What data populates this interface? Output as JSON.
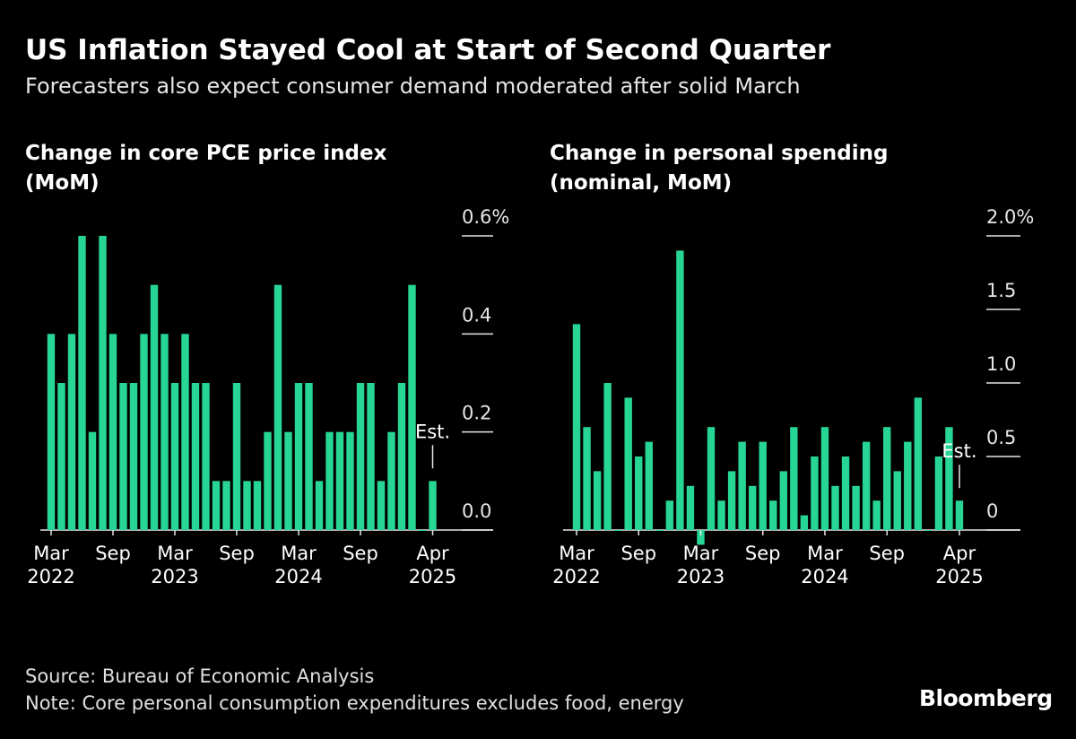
{
  "title": "US Inflation Stayed Cool at Start of Second Quarter",
  "subtitle": "Forecasters also expect consumer demand moderated after solid March",
  "source": "Source: Bureau of Economic Analysis",
  "note": "Note: Core personal consumption expenditures excludes food, energy",
  "brand": "Bloomberg",
  "chart_data": [
    {
      "type": "bar",
      "title": "Change in core PCE price index\n(MoM)",
      "color": "#27d694",
      "annotation": "Est.",
      "categories": [
        "Mar\n2022",
        null,
        null,
        null,
        null,
        null,
        "Sep",
        null,
        null,
        null,
        null,
        null,
        "Mar\n2023",
        null,
        null,
        null,
        null,
        null,
        "Sep",
        null,
        null,
        null,
        null,
        null,
        "Mar\n2024",
        null,
        null,
        null,
        null,
        null,
        "Sep",
        null,
        null,
        null,
        null,
        null,
        null,
        "Apr\n2025"
      ],
      "values": [
        0.4,
        0.3,
        0.4,
        0.6,
        0.2,
        0.6,
        0.4,
        0.3,
        0.3,
        0.4,
        0.5,
        0.4,
        0.3,
        0.4,
        0.3,
        0.3,
        0.1,
        0.1,
        0.3,
        0.1,
        0.1,
        0.2,
        0.5,
        0.2,
        0.3,
        0.3,
        0.1,
        0.2,
        0.2,
        0.2,
        0.3,
        0.3,
        0.1,
        0.2,
        0.3,
        0.5,
        0.0,
        0.1
      ],
      "ylim": [
        0,
        0.6
      ],
      "yticks": [
        {
          "value": 0,
          "label": "0.0"
        },
        0.2,
        0.4,
        {
          "value": 0.6,
          "label": "0.6%"
        }
      ]
    },
    {
      "type": "bar",
      "title": "Change in personal spending\n(nominal, MoM)",
      "color": "#27d694",
      "annotation": "Est.",
      "categories": [
        "Mar\n2022",
        null,
        null,
        null,
        null,
        null,
        "Sep",
        null,
        null,
        null,
        null,
        null,
        "Mar\n2023",
        null,
        null,
        null,
        null,
        null,
        "Sep",
        null,
        null,
        null,
        null,
        null,
        "Mar\n2024",
        null,
        null,
        null,
        null,
        null,
        "Sep",
        null,
        null,
        null,
        null,
        null,
        null,
        "Apr\n2025"
      ],
      "values": [
        1.4,
        0.7,
        0.4,
        1.0,
        0.0,
        0.9,
        0.5,
        0.6,
        0.0,
        0.2,
        1.9,
        0.3,
        -0.1,
        0.7,
        0.2,
        0.4,
        0.6,
        0.3,
        0.6,
        0.2,
        0.4,
        0.7,
        0.1,
        0.5,
        0.7,
        0.3,
        0.5,
        0.3,
        0.6,
        0.2,
        0.7,
        0.4,
        0.6,
        0.9,
        0.0,
        0.5,
        0.7,
        0.2
      ],
      "ylim": [
        0,
        2.0
      ],
      "yticks": [
        0,
        0.5,
        {
          "value": 1,
          "label": "1.0"
        },
        1.5,
        {
          "value": 2,
          "label": "2.0%"
        }
      ]
    }
  ]
}
